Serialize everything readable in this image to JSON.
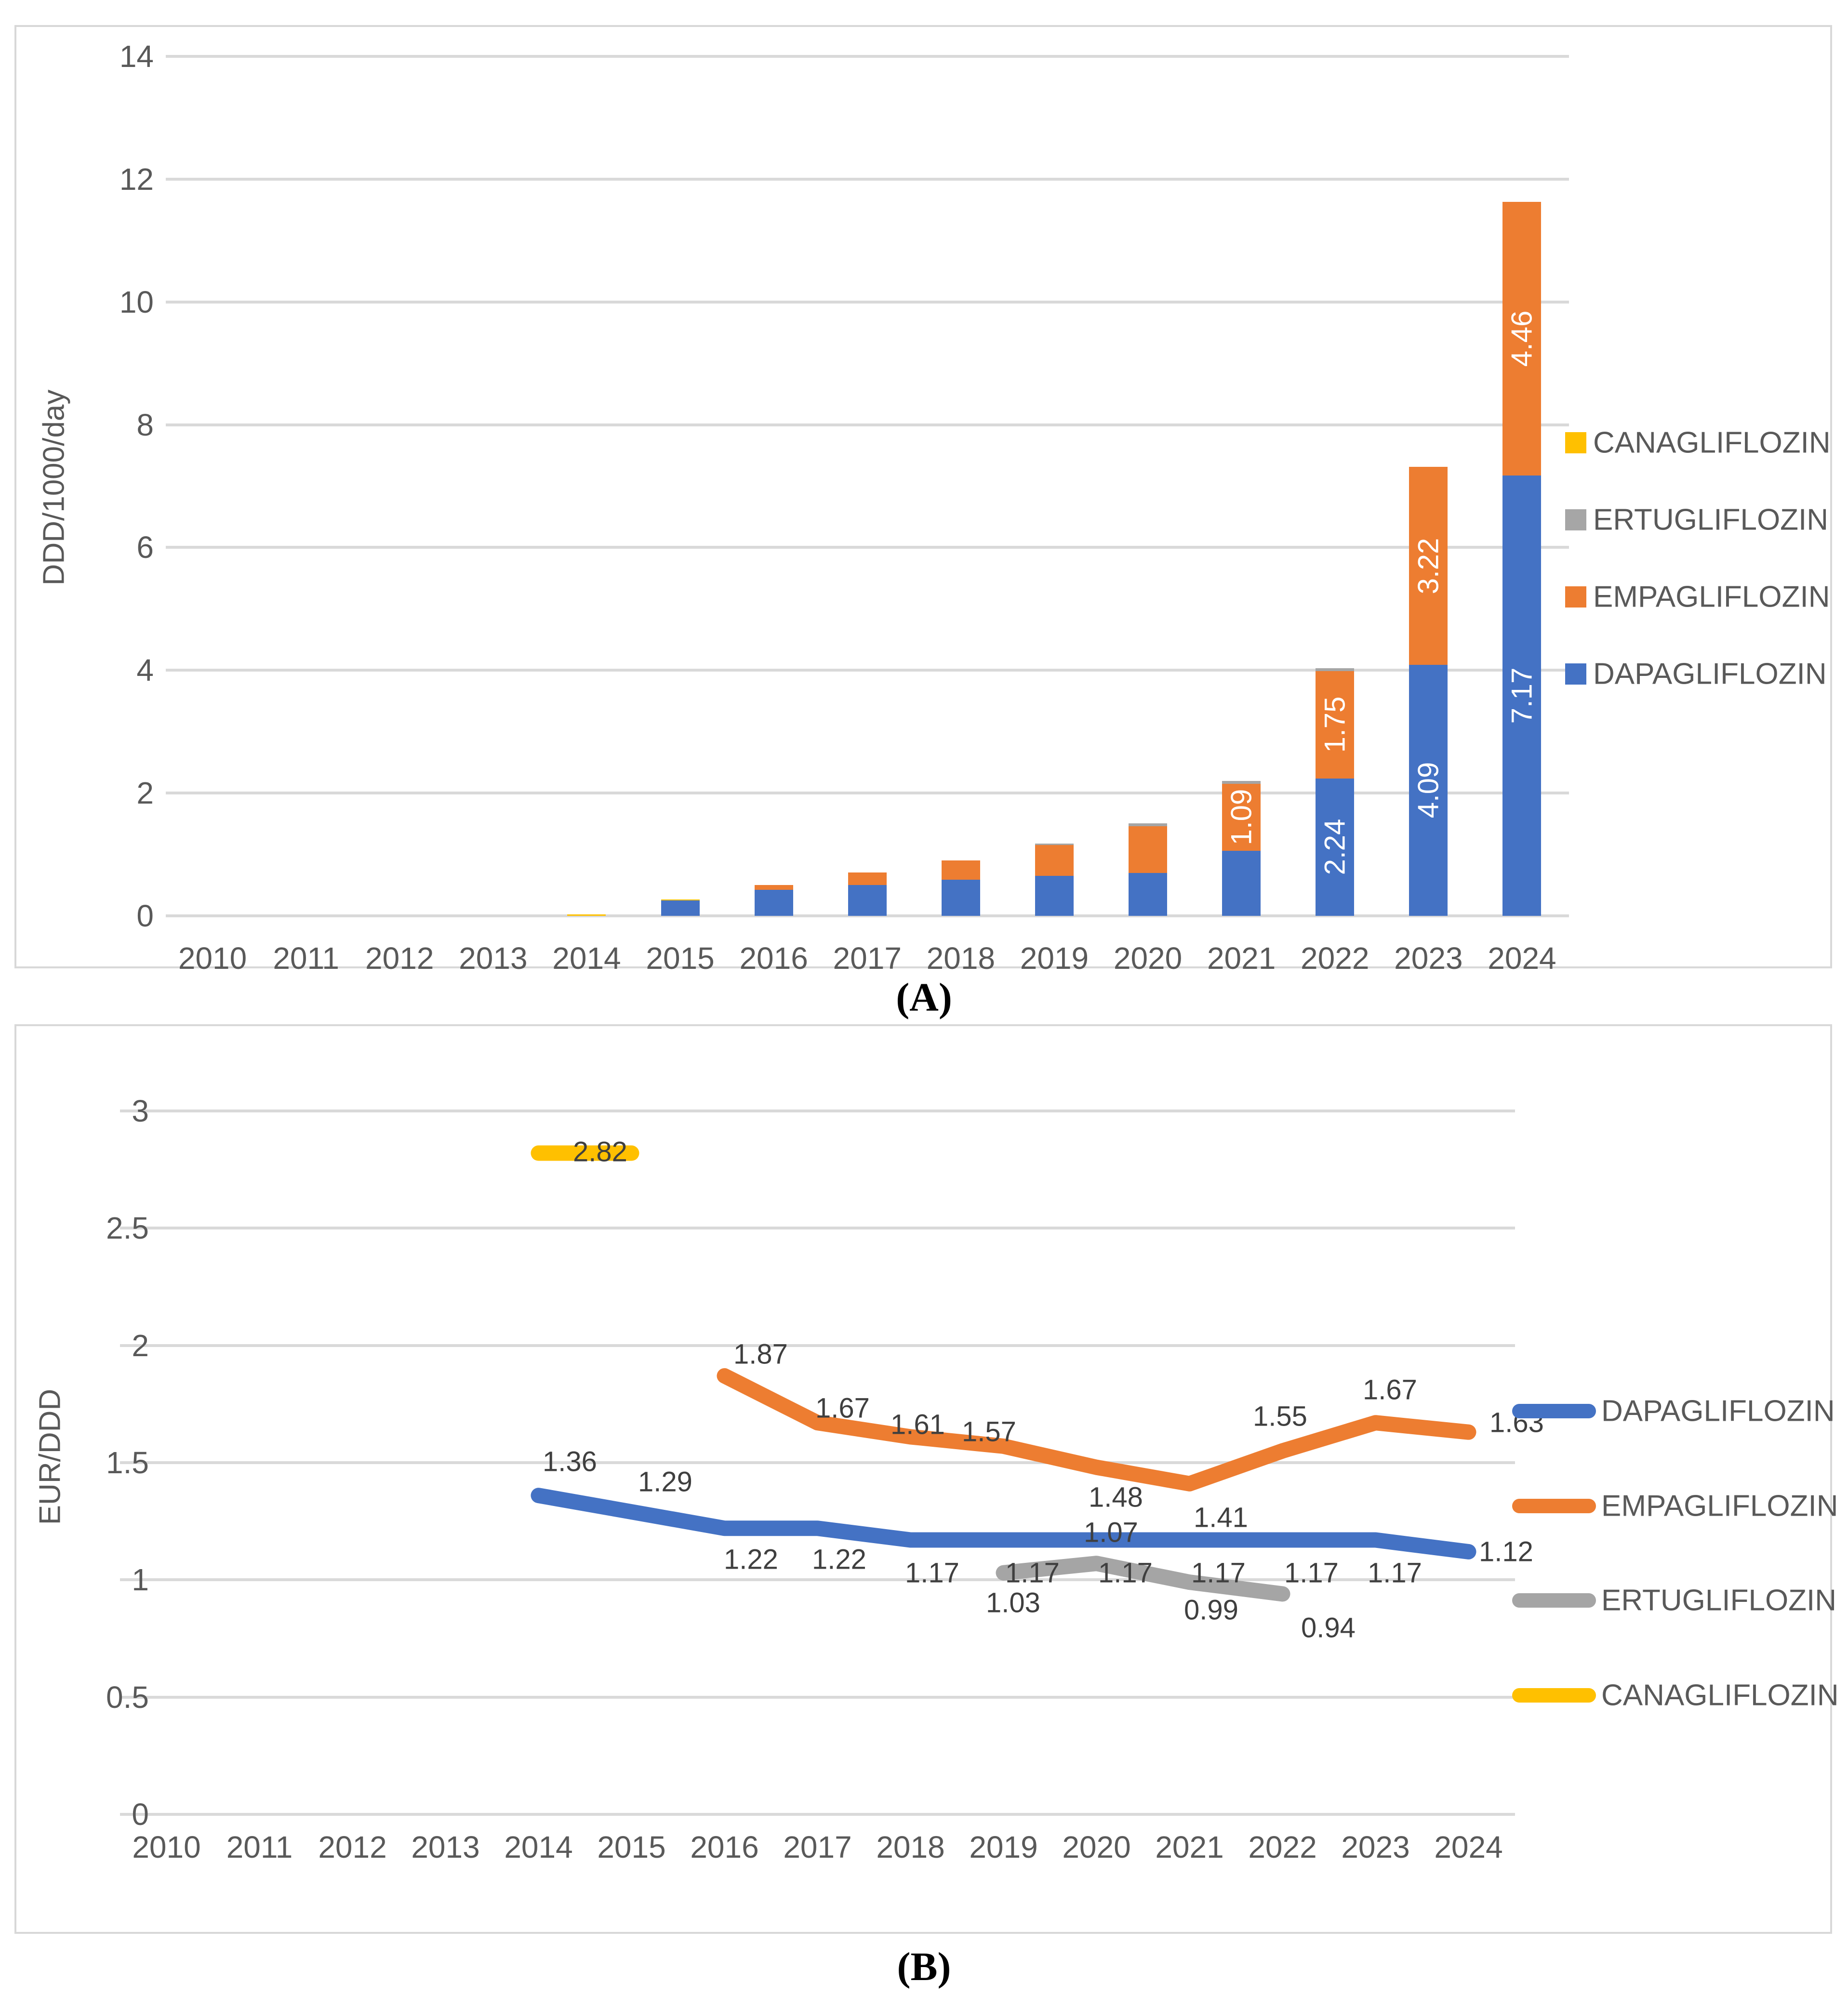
{
  "captions": {
    "a": "(A)",
    "b": "(B)"
  },
  "colors": {
    "dapagliflozin": "#4472C4",
    "empagliflozin": "#ED7D31",
    "ertugliflozin": "#A5A5A5",
    "canagliflozin": "#FFC000",
    "axis_text": "#595959",
    "gridline": "#D9D9D9",
    "bar_label": "#FFFFFF",
    "point_label": "#3F3F3F"
  },
  "chart_data": [
    {
      "type": "bar",
      "stacked": true,
      "title": "",
      "xlabel": "",
      "ylabel": "DDD/1000/day",
      "ylim": [
        0,
        14
      ],
      "yticks": [
        0,
        2,
        4,
        6,
        8,
        10,
        12,
        14
      ],
      "grid": true,
      "legend_position": "right",
      "categories": [
        "2010",
        "2011",
        "2012",
        "2013",
        "2014",
        "2015",
        "2016",
        "2017",
        "2018",
        "2019",
        "2020",
        "2021",
        "2022",
        "2023",
        "2024"
      ],
      "series": [
        {
          "name": "DAPAGLIFLOZIN",
          "color": "#4472C4",
          "values": [
            0,
            0,
            0,
            0,
            0,
            0.25,
            0.42,
            0.5,
            0.59,
            0.65,
            0.7,
            1.06,
            2.24,
            4.09,
            7.17
          ],
          "labels": [
            "",
            "",
            "",
            "",
            "",
            "",
            "",
            "",
            "",
            "",
            "",
            "",
            "2.24",
            "4.09",
            "7.17"
          ]
        },
        {
          "name": "EMPAGLIFLOZIN",
          "color": "#ED7D31",
          "values": [
            0,
            0,
            0,
            0,
            0,
            0,
            0.08,
            0.21,
            0.31,
            0.5,
            0.76,
            1.09,
            1.75,
            3.22,
            4.46
          ],
          "labels": [
            "",
            "",
            "",
            "",
            "",
            "",
            "",
            "",
            "",
            "",
            "",
            "1.09",
            "1.75",
            "3.22",
            "4.46"
          ]
        },
        {
          "name": "ERTUGLIFLOZIN",
          "color": "#A5A5A5",
          "values": [
            0,
            0,
            0,
            0,
            0,
            0,
            0,
            0,
            0,
            0.03,
            0.05,
            0.05,
            0.04,
            0,
            0
          ],
          "labels": []
        },
        {
          "name": "CANAGLIFLOZIN",
          "color": "#FFC000",
          "values": [
            0,
            0,
            0,
            0,
            0.02,
            0.02,
            0,
            0,
            0,
            0,
            0,
            0,
            0,
            0,
            0
          ],
          "labels": []
        }
      ],
      "legend": [
        {
          "label": "CANAGLIFLOZIN",
          "color": "#FFC000"
        },
        {
          "label": "ERTUGLIFLOZIN",
          "color": "#A6A6A6"
        },
        {
          "label": "EMPAGLIFLOZIN",
          "color": "#ED7D31"
        },
        {
          "label": "DAPAGLIFLOZIN",
          "color": "#4472C4"
        }
      ]
    },
    {
      "type": "line",
      "title": "",
      "xlabel": "",
      "ylabel": "EUR/DDD",
      "ylim": [
        0,
        3
      ],
      "yticks": [
        0,
        0.5,
        1,
        1.5,
        2,
        2.5,
        3
      ],
      "grid": true,
      "legend_position": "right",
      "categories": [
        "2010",
        "2011",
        "2012",
        "2013",
        "2014",
        "2015",
        "2016",
        "2017",
        "2018",
        "2019",
        "2020",
        "2021",
        "2022",
        "2023",
        "2024"
      ],
      "series": [
        {
          "name": "DAPAGLIFLOZIN",
          "color": "#4472C4",
          "points": [
            {
              "x": 4,
              "v": 1.36,
              "label": "1.36",
              "dx": 65,
              "dy": -70
            },
            {
              "x": 5,
              "v": 1.29,
              "label": "1.29",
              "dx": 70,
              "dy": -62
            },
            {
              "x": 6,
              "v": 1.22,
              "label": "1.22",
              "dx": 55,
              "dy": 65
            },
            {
              "x": 7,
              "v": 1.22,
              "label": "1.22",
              "dx": 45,
              "dy": 65
            },
            {
              "x": 8,
              "v": 1.17,
              "label": "1.17",
              "dx": 45,
              "dy": 68
            },
            {
              "x": 9,
              "v": 1.17,
              "label": "1.17",
              "dx": 60,
              "dy": 68
            },
            {
              "x": 10,
              "v": 1.17,
              "label": "1.17",
              "dx": 60,
              "dy": 68
            },
            {
              "x": 11,
              "v": 1.17,
              "label": "1.17",
              "dx": 60,
              "dy": 68
            },
            {
              "x": 12,
              "v": 1.17,
              "label": "1.17",
              "dx": 60,
              "dy": 68
            },
            {
              "x": 13,
              "v": 1.17,
              "label": "1.17",
              "dx": 40,
              "dy": 68
            },
            {
              "x": 14,
              "v": 1.12,
              "label": "1.12",
              "dx": 78,
              "dy": 0
            }
          ]
        },
        {
          "name": "EMPAGLIFLOZIN",
          "color": "#ED7D31",
          "points": [
            {
              "x": 6,
              "v": 1.87,
              "label": "1.87",
              "dx": 75,
              "dy": -45
            },
            {
              "x": 7,
              "v": 1.67,
              "label": "1.67",
              "dx": 52,
              "dy": -30
            },
            {
              "x": 8,
              "v": 1.61,
              "label": "1.61",
              "dx": 15,
              "dy": -25
            },
            {
              "x": 9,
              "v": 1.57,
              "label": "1.57",
              "dx": -30,
              "dy": -30
            },
            {
              "x": 10,
              "v": 1.48,
              "label": "1.48",
              "dx": 40,
              "dy": 62
            },
            {
              "x": 11,
              "v": 1.41,
              "label": "1.41",
              "dx": 65,
              "dy": 70
            },
            {
              "x": 12,
              "v": 1.55,
              "label": "1.55",
              "dx": -5,
              "dy": -72
            },
            {
              "x": 13,
              "v": 1.67,
              "label": "1.67",
              "dx": 30,
              "dy": -68
            },
            {
              "x": 14,
              "v": 1.63,
              "label": "1.63",
              "dx": 100,
              "dy": -20
            }
          ]
        },
        {
          "name": "ERTUGLIFLOZIN",
          "color": "#A5A5A5",
          "points": [
            {
              "x": 9,
              "v": 1.03,
              "label": "1.03",
              "dx": 20,
              "dy": 62
            },
            {
              "x": 10,
              "v": 1.07,
              "label": "1.07",
              "dx": 30,
              "dy": -64
            },
            {
              "x": 11,
              "v": 0.99,
              "label": "0.99",
              "dx": 45,
              "dy": 58
            },
            {
              "x": 12,
              "v": 0.94,
              "label": "0.94",
              "dx": 95,
              "dy": 70
            }
          ]
        },
        {
          "name": "CANAGLIFLOZIN",
          "color": "#FFC000",
          "points": [
            {
              "x": 4,
              "v": 2.82,
              "label": "2.82",
              "dx": 128,
              "dy": -3
            },
            {
              "x": 5,
              "v": 2.82
            }
          ]
        }
      ],
      "legend": [
        {
          "label": "DAPAGLIFLOZIN",
          "color": "#4472C4"
        },
        {
          "label": "EMPAGLIFLOZIN",
          "color": "#ED7D31"
        },
        {
          "label": "ERTUGLIFLOZIN",
          "color": "#A5A5A5"
        },
        {
          "label": "CANAGLIFLOZIN",
          "color": "#FFC000"
        }
      ]
    }
  ]
}
